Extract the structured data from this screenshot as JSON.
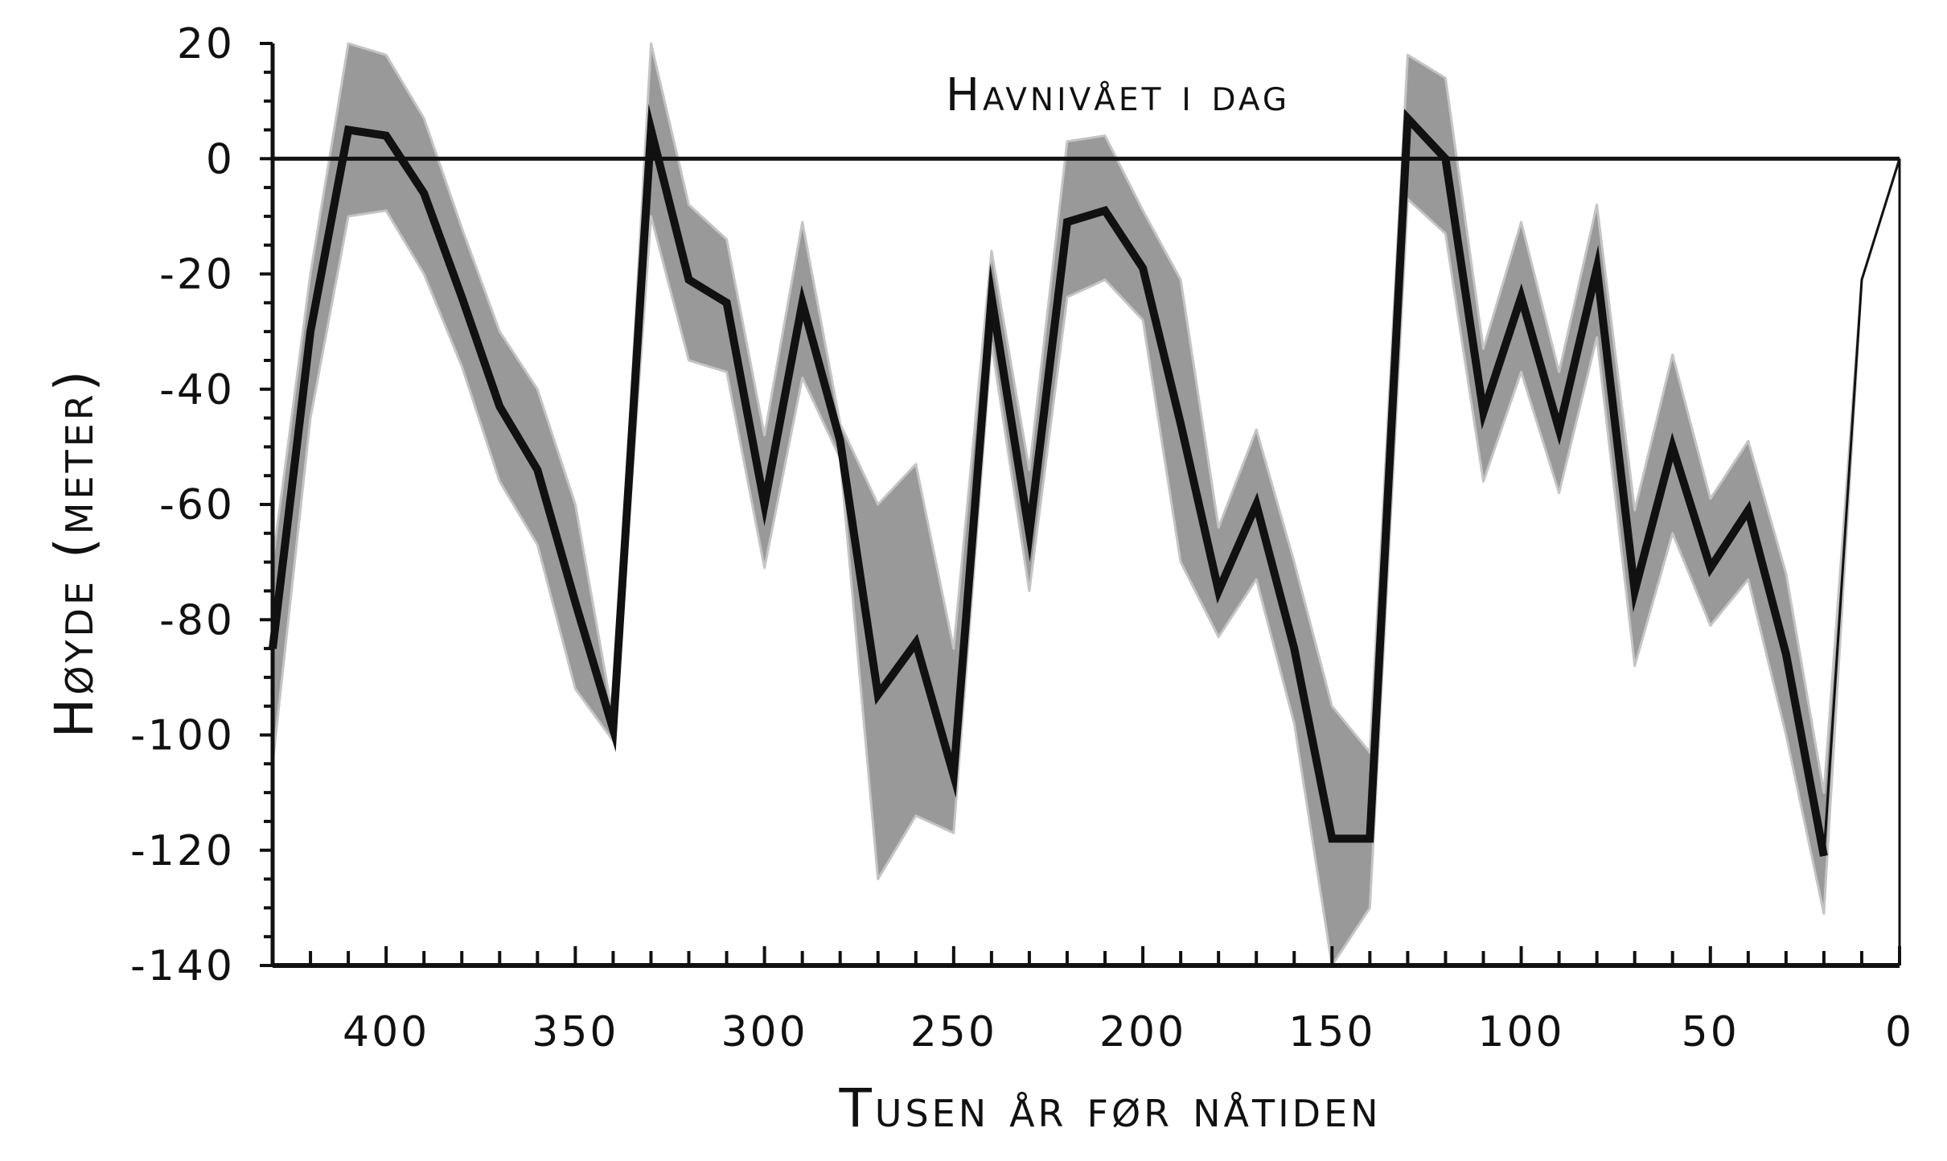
{
  "chart_data": {
    "type": "area",
    "title": "",
    "xlabel": "Tusen år før nåtiden",
    "ylabel": "Høyde (meter)",
    "xlim": [
      430,
      0
    ],
    "ylim": [
      -140,
      20
    ],
    "x_ticks": [
      400,
      350,
      300,
      250,
      200,
      150,
      100,
      50,
      0
    ],
    "x_tick_labels": [
      "400",
      "350",
      "300",
      "250",
      "200",
      "150",
      "100",
      "50",
      "0"
    ],
    "y_ticks": [
      20,
      0,
      -20,
      -40,
      -60,
      -80,
      -100,
      -120,
      -140
    ],
    "y_tick_labels": [
      "20",
      "0",
      "-20",
      "-40",
      "-60",
      "-80",
      "-100",
      "-120",
      "-140"
    ],
    "grid": false,
    "legend": "none",
    "annotations": [
      {
        "text": "Havnivået i dag",
        "x": 290,
        "y": 8
      }
    ],
    "reference_line": {
      "y": 0,
      "label": "Havnivået i dag"
    },
    "colors": {
      "line": "#111111",
      "band": "#999999",
      "band_edge": "#c4c4c4",
      "axis": "#111111"
    },
    "series": [
      {
        "x": [
          430,
          420,
          410,
          400,
          390,
          380,
          370,
          360,
          350,
          340,
          330,
          320,
          310,
          300,
          290,
          280,
          270,
          260,
          250,
          240,
          230,
          220,
          210,
          200,
          190,
          180,
          170,
          160,
          150,
          140,
          130,
          120,
          110,
          100,
          90,
          80,
          70,
          60,
          50,
          40,
          30,
          20,
          10,
          0
        ],
        "values": [
          -85,
          -30,
          5,
          4,
          -6,
          -24,
          -43,
          -54,
          -77,
          -99,
          5,
          -21,
          -25,
          -60,
          -25,
          -49,
          -93,
          -84,
          -107,
          -24,
          -65,
          -11,
          -9,
          -19,
          -46,
          -75,
          -60,
          -85,
          -118,
          -118,
          7,
          0,
          -44,
          -24,
          -47,
          -19,
          -75,
          -50,
          -71,
          -61,
          -86,
          -121,
          -21,
          0
        ],
        "upper": [
          -70,
          -20,
          20,
          18,
          7,
          -12,
          -30,
          -40,
          -60,
          -97,
          20,
          -8,
          -14,
          -48,
          -11,
          -46,
          -60,
          -53,
          -85,
          -16,
          -54,
          3,
          4,
          -9,
          -21,
          -64,
          -47,
          -70,
          -95,
          -103,
          18,
          14,
          -33,
          -11,
          -37,
          -8,
          -61,
          -34,
          -59,
          -49,
          -72,
          -110,
          -21,
          0
        ],
        "lower": [
          -105,
          -45,
          -10,
          -9,
          -20,
          -36,
          -56,
          -67,
          -92,
          -101,
          -10,
          -35,
          -37,
          -71,
          -38,
          -52,
          -125,
          -114,
          -117,
          -32,
          -75,
          -24,
          -21,
          -28,
          -70,
          -83,
          -73,
          -98,
          -140,
          -130,
          -7,
          -13,
          -56,
          -37,
          -58,
          -31,
          -88,
          -65,
          -81,
          -73,
          -100,
          -131,
          -21,
          0
        ]
      }
    ]
  }
}
